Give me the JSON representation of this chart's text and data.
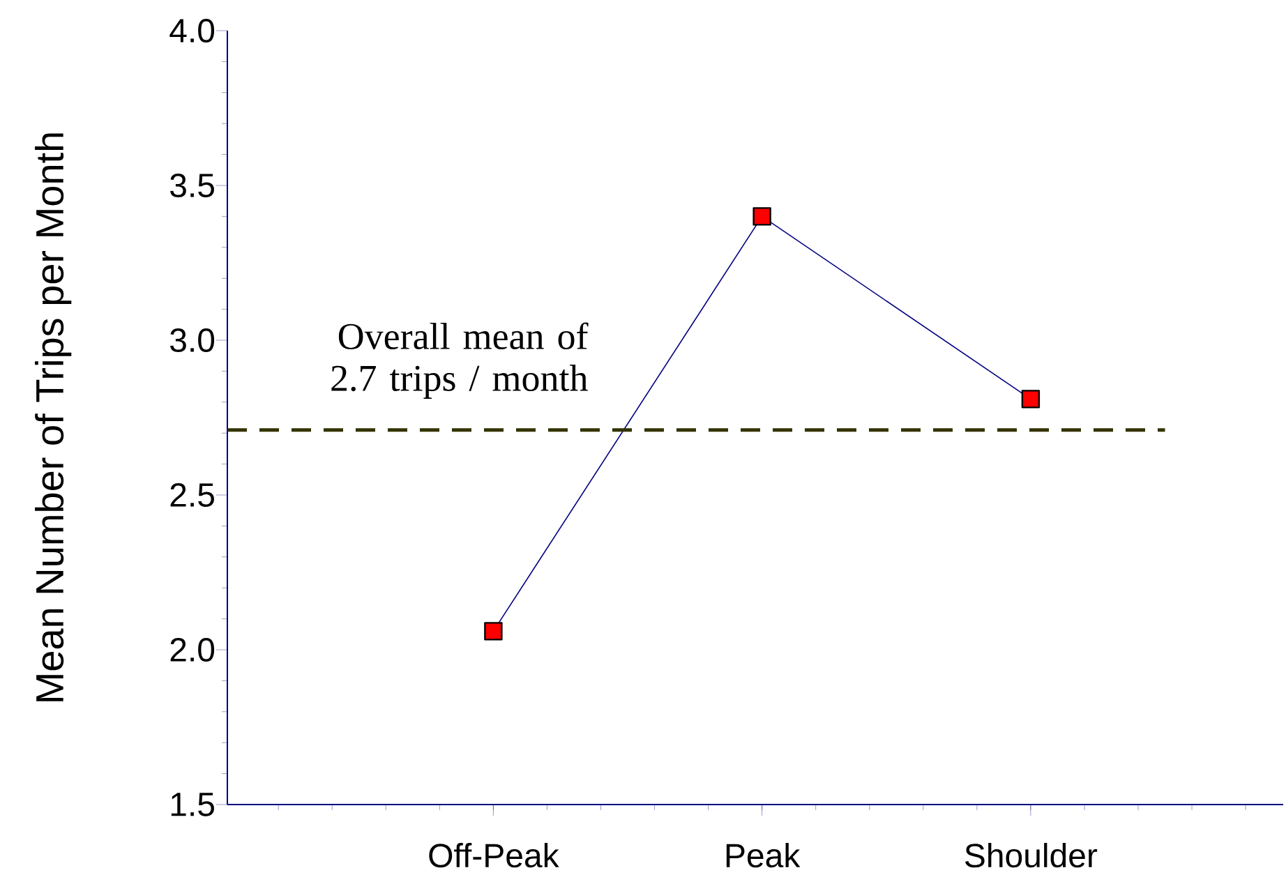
{
  "chart_data": {
    "type": "line",
    "ylabel": "Mean Number of Trips per Month",
    "categories": [
      "Off-Peak",
      "Peak",
      "Shoulder"
    ],
    "series": [
      {
        "color": "#000080",
        "values": [
          2.06,
          3.4,
          2.81
        ]
      }
    ],
    "marker": "square",
    "line_style": "solid",
    "grid": false,
    "ylim": [
      1.5,
      4.0
    ],
    "yticks": [
      {
        "value": 1.5,
        "label": "1.5"
      },
      {
        "value": 2.0,
        "label": "2.0"
      },
      {
        "value": 2.5,
        "label": "2.5"
      },
      {
        "value": 3.0,
        "label": "3.0"
      },
      {
        "value": 3.5,
        "label": "3.5"
      },
      {
        "value": 4.0,
        "label": "4.0"
      }
    ],
    "ref_lines": [
      {
        "axis": "y",
        "value": 2.71,
        "label": "Overall mean of 2.7 trips / month",
        "color": "#333300",
        "line_style": "dashed"
      }
    ]
  }
}
